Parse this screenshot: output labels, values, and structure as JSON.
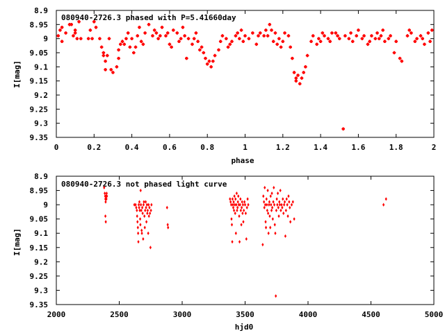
{
  "chart_data": [
    {
      "type": "scatter",
      "title": "080940-2726.3 phased with P=5.41660day",
      "xlabel": "phase",
      "ylabel": "I[mag]",
      "xlim": [
        0,
        2
      ],
      "ylim": [
        9.35,
        8.9
      ],
      "y_inverted": true,
      "grid": false,
      "x_ticks": [
        0,
        0.2,
        0.4,
        0.6,
        0.8,
        1,
        1.2,
        1.4,
        1.6,
        1.8,
        2
      ],
      "x_tick_labels": [
        "0",
        "0.2",
        "0.4",
        "0.6",
        "0.8",
        "1",
        "1.2",
        "1.4",
        "1.6",
        "1.8",
        "2"
      ],
      "y_ticks": [
        8.9,
        8.95,
        9,
        9.05,
        9.1,
        9.15,
        9.2,
        9.25,
        9.3,
        9.35
      ],
      "y_tick_labels": [
        "8.9",
        "8.95",
        "9",
        "9.05",
        "9.1",
        "9.15",
        "9.2",
        "9.25",
        "9.3",
        "9.35"
      ],
      "marker_color": "#ff0000",
      "marker": "plus",
      "points": [
        [
          0.01,
          8.99
        ],
        [
          0.02,
          8.97
        ],
        [
          0.03,
          8.96
        ],
        [
          0.03,
          9.01
        ],
        [
          0.05,
          8.98
        ],
        [
          0.07,
          8.95
        ],
        [
          0.08,
          8.95
        ],
        [
          0.09,
          8.99
        ],
        [
          0.1,
          8.98
        ],
        [
          0.1,
          8.97
        ],
        [
          0.11,
          9.0
        ],
        [
          0.12,
          8.94
        ],
        [
          0.13,
          9.0
        ],
        [
          0.17,
          9.0
        ],
        [
          0.18,
          8.97
        ],
        [
          0.19,
          9.0
        ],
        [
          0.2,
          8.94
        ],
        [
          0.21,
          8.96
        ],
        [
          0.23,
          9.0
        ],
        [
          0.24,
          9.03
        ],
        [
          0.25,
          9.05
        ],
        [
          0.25,
          9.06
        ],
        [
          0.26,
          9.08
        ],
        [
          0.26,
          9.11
        ],
        [
          0.27,
          9.06
        ],
        [
          0.28,
          9.0
        ],
        [
          0.29,
          9.11
        ],
        [
          0.3,
          9.12
        ],
        [
          0.32,
          9.1
        ],
        [
          0.33,
          9.07
        ],
        [
          0.33,
          9.04
        ],
        [
          0.34,
          9.02
        ],
        [
          0.35,
          9.01
        ],
        [
          0.36,
          9.02
        ],
        [
          0.37,
          9.0
        ],
        [
          0.38,
          8.98
        ],
        [
          0.39,
          9.03
        ],
        [
          0.4,
          9.0
        ],
        [
          0.41,
          9.05
        ],
        [
          0.42,
          9.03
        ],
        [
          0.43,
          8.99
        ],
        [
          0.44,
          8.96
        ],
        [
          0.45,
          9.01
        ],
        [
          0.46,
          9.02
        ],
        [
          0.47,
          8.98
        ],
        [
          0.49,
          8.95
        ],
        [
          0.51,
          8.99
        ],
        [
          0.52,
          8.97
        ],
        [
          0.53,
          8.98
        ],
        [
          0.54,
          9.0
        ],
        [
          0.55,
          8.99
        ],
        [
          0.56,
          8.96
        ],
        [
          0.58,
          8.99
        ],
        [
          0.59,
          8.98
        ],
        [
          0.6,
          9.02
        ],
        [
          0.61,
          9.03
        ],
        [
          0.62,
          8.97
        ],
        [
          0.64,
          8.98
        ],
        [
          0.65,
          9.01
        ],
        [
          0.66,
          9.0
        ],
        [
          0.67,
          8.96
        ],
        [
          0.68,
          8.99
        ],
        [
          0.69,
          9.07
        ],
        [
          0.7,
          9.0
        ],
        [
          0.72,
          9.02
        ],
        [
          0.73,
          9.0
        ],
        [
          0.74,
          8.98
        ],
        [
          0.75,
          9.01
        ],
        [
          0.76,
          9.04
        ],
        [
          0.77,
          9.03
        ],
        [
          0.78,
          9.05
        ],
        [
          0.79,
          9.07
        ],
        [
          0.8,
          9.09
        ],
        [
          0.81,
          9.08
        ],
        [
          0.82,
          9.1
        ],
        [
          0.83,
          9.08
        ],
        [
          0.84,
          9.06
        ],
        [
          0.86,
          9.04
        ],
        [
          0.87,
          9.01
        ],
        [
          0.88,
          8.99
        ],
        [
          0.9,
          9.0
        ],
        [
          0.91,
          9.03
        ],
        [
          0.92,
          9.02
        ],
        [
          0.93,
          9.01
        ],
        [
          0.95,
          8.99
        ],
        [
          0.96,
          8.98
        ],
        [
          0.97,
          9.0
        ],
        [
          0.98,
          8.97
        ],
        [
          0.99,
          9.01
        ],
        [
          1.0,
          8.99
        ],
        [
          1.02,
          9.0
        ],
        [
          1.04,
          8.98
        ],
        [
          1.06,
          9.02
        ],
        [
          1.07,
          8.99
        ],
        [
          1.08,
          8.98
        ],
        [
          1.1,
          8.99
        ],
        [
          1.11,
          8.97
        ],
        [
          1.12,
          8.99
        ],
        [
          1.13,
          8.95
        ],
        [
          1.14,
          8.97
        ],
        [
          1.15,
          9.01
        ],
        [
          1.16,
          8.98
        ],
        [
          1.17,
          9.02
        ],
        [
          1.18,
          9.0
        ],
        [
          1.19,
          9.03
        ],
        [
          1.2,
          9.01
        ],
        [
          1.21,
          8.98
        ],
        [
          1.23,
          8.99
        ],
        [
          1.24,
          9.03
        ],
        [
          1.25,
          9.07
        ],
        [
          1.26,
          9.12
        ],
        [
          1.27,
          9.14
        ],
        [
          1.27,
          9.15
        ],
        [
          1.28,
          9.13
        ],
        [
          1.29,
          9.16
        ],
        [
          1.3,
          9.14
        ],
        [
          1.31,
          9.12
        ],
        [
          1.32,
          9.1
        ],
        [
          1.33,
          9.06
        ],
        [
          1.35,
          9.01
        ],
        [
          1.36,
          8.99
        ],
        [
          1.38,
          9.02
        ],
        [
          1.39,
          9.0
        ],
        [
          1.4,
          9.01
        ],
        [
          1.41,
          8.98
        ],
        [
          1.42,
          8.99
        ],
        [
          1.44,
          9.0
        ],
        [
          1.45,
          9.01
        ],
        [
          1.46,
          8.98
        ],
        [
          1.48,
          8.98
        ],
        [
          1.49,
          8.99
        ],
        [
          1.5,
          9.0
        ],
        [
          1.52,
          9.32
        ],
        [
          1.53,
          8.99
        ],
        [
          1.55,
          9.0
        ],
        [
          1.56,
          8.98
        ],
        [
          1.57,
          9.01
        ],
        [
          1.59,
          8.99
        ],
        [
          1.6,
          8.97
        ],
        [
          1.62,
          9.0
        ],
        [
          1.63,
          8.99
        ],
        [
          1.65,
          9.02
        ],
        [
          1.66,
          9.01
        ],
        [
          1.67,
          8.99
        ],
        [
          1.69,
          9.0
        ],
        [
          1.7,
          8.98
        ],
        [
          1.71,
          9.0
        ],
        [
          1.72,
          8.99
        ],
        [
          1.73,
          8.97
        ],
        [
          1.74,
          9.01
        ],
        [
          1.76,
          9.0
        ],
        [
          1.77,
          8.99
        ],
        [
          1.79,
          9.05
        ],
        [
          1.8,
          9.01
        ],
        [
          1.82,
          9.07
        ],
        [
          1.83,
          9.08
        ],
        [
          1.86,
          8.99
        ],
        [
          1.87,
          8.97
        ],
        [
          1.88,
          8.98
        ],
        [
          1.9,
          9.01
        ],
        [
          1.91,
          9.0
        ],
        [
          1.93,
          8.99
        ],
        [
          1.94,
          9.0
        ],
        [
          1.95,
          9.02
        ],
        [
          1.97,
          8.98
        ],
        [
          1.98,
          9.01
        ],
        [
          1.99,
          8.97
        ]
      ]
    },
    {
      "type": "scatter",
      "title": "080940-2726.3 not phased light curve",
      "xlabel": "hjd0",
      "ylabel": "I[mag]",
      "xlim": [
        2000,
        5000
      ],
      "ylim": [
        9.35,
        8.9
      ],
      "y_inverted": true,
      "grid": false,
      "x_ticks": [
        2000,
        2500,
        3000,
        3500,
        4000,
        4500,
        5000
      ],
      "x_tick_labels": [
        "2000",
        "2500",
        "3000",
        "3500",
        "4000",
        "4500",
        "5000"
      ],
      "y_ticks": [
        8.9,
        8.95,
        9,
        9.05,
        9.1,
        9.15,
        9.2,
        9.25,
        9.3,
        9.35
      ],
      "y_tick_labels": [
        "8.9",
        "8.95",
        "9",
        "9.05",
        "9.1",
        "9.15",
        "9.2",
        "9.25",
        "9.3",
        "9.35"
      ],
      "marker_color": "#ff0000",
      "marker": "diamond",
      "points": [
        [
          2380,
          8.94
        ],
        [
          2385,
          8.96
        ],
        [
          2388,
          8.97
        ],
        [
          2390,
          8.98
        ],
        [
          2392,
          8.99
        ],
        [
          2395,
          8.97
        ],
        [
          2398,
          8.98
        ],
        [
          2400,
          8.96
        ],
        [
          2402,
          8.97
        ],
        [
          2390,
          9.04
        ],
        [
          2393,
          9.06
        ],
        [
          2620,
          9.0
        ],
        [
          2630,
          9.0
        ],
        [
          2635,
          9.01
        ],
        [
          2640,
          9.02
        ],
        [
          2642,
          9.04
        ],
        [
          2645,
          9.06
        ],
        [
          2648,
          9.08
        ],
        [
          2650,
          9.1
        ],
        [
          2652,
          9.13
        ],
        [
          2655,
          9.0
        ],
        [
          2658,
          9.01
        ],
        [
          2660,
          8.99
        ],
        [
          2663,
          9.02
        ],
        [
          2666,
          9.05
        ],
        [
          2668,
          9.07
        ],
        [
          2670,
          8.95
        ],
        [
          2672,
          9.0
        ],
        [
          2675,
          9.02
        ],
        [
          2678,
          9.09
        ],
        [
          2680,
          9.1
        ],
        [
          2683,
          9.01
        ],
        [
          2686,
          9.03
        ],
        [
          2690,
          9.12
        ],
        [
          2693,
          9.0
        ],
        [
          2696,
          8.99
        ],
        [
          2700,
          9.04
        ],
        [
          2703,
          9.08
        ],
        [
          2706,
          9.02
        ],
        [
          2710,
          8.99
        ],
        [
          2713,
          9.01
        ],
        [
          2716,
          9.06
        ],
        [
          2720,
          9.0
        ],
        [
          2723,
          9.03
        ],
        [
          2726,
          9.02
        ],
        [
          2730,
          9.1
        ],
        [
          2733,
          9.0
        ],
        [
          2736,
          9.04
        ],
        [
          2740,
          9.01
        ],
        [
          2744,
          9.03
        ],
        [
          2748,
          9.15
        ],
        [
          2752,
          9.02
        ],
        [
          2756,
          9.0
        ],
        [
          2880,
          9.01
        ],
        [
          2885,
          9.07
        ],
        [
          2888,
          9.08
        ],
        [
          3380,
          8.98
        ],
        [
          3385,
          8.99
        ],
        [
          3390,
          9.0
        ],
        [
          3392,
          9.05
        ],
        [
          3395,
          9.07
        ],
        [
          3398,
          9.13
        ],
        [
          3400,
          8.98
        ],
        [
          3403,
          9.0
        ],
        [
          3406,
          9.01
        ],
        [
          3409,
          8.99
        ],
        [
          3412,
          9.02
        ],
        [
          3415,
          8.97
        ],
        [
          3418,
          9.0
        ],
        [
          3421,
          9.03
        ],
        [
          3424,
          8.98
        ],
        [
          3427,
          9.1
        ],
        [
          3430,
          9.0
        ],
        [
          3433,
          8.96
        ],
        [
          3436,
          9.02
        ],
        [
          3440,
          9.01
        ],
        [
          3443,
          8.99
        ],
        [
          3446,
          8.97
        ],
        [
          3450,
          9.0
        ],
        [
          3453,
          9.04
        ],
        [
          3456,
          9.13
        ],
        [
          3460,
          9.0
        ],
        [
          3463,
          8.98
        ],
        [
          3466,
          9.02
        ],
        [
          3470,
          9.07
        ],
        [
          3473,
          9.01
        ],
        [
          3476,
          8.99
        ],
        [
          3480,
          9.03
        ],
        [
          3483,
          9.0
        ],
        [
          3486,
          9.06
        ],
        [
          3490,
          9.02
        ],
        [
          3495,
          8.99
        ],
        [
          3500,
          9.0
        ],
        [
          3505,
          9.03
        ],
        [
          3510,
          9.12
        ],
        [
          3515,
          9.01
        ],
        [
          3520,
          8.98
        ],
        [
          3525,
          9.0
        ],
        [
          3640,
          9.14
        ],
        [
          3645,
          8.97
        ],
        [
          3650,
          8.99
        ],
        [
          3653,
          9.01
        ],
        [
          3656,
          8.94
        ],
        [
          3660,
          9.0
        ],
        [
          3663,
          9.06
        ],
        [
          3666,
          9.08
        ],
        [
          3670,
          8.98
        ],
        [
          3673,
          9.0
        ],
        [
          3676,
          9.02
        ],
        [
          3680,
          8.95
        ],
        [
          3683,
          9.03
        ],
        [
          3686,
          9.1
        ],
        [
          3690,
          9.0
        ],
        [
          3693,
          8.99
        ],
        [
          3696,
          9.04
        ],
        [
          3700,
          9.08
        ],
        [
          3703,
          8.97
        ],
        [
          3706,
          9.0
        ],
        [
          3710,
          9.02
        ],
        [
          3713,
          8.96
        ],
        [
          3716,
          9.01
        ],
        [
          3720,
          9.05
        ],
        [
          3724,
          8.99
        ],
        [
          3728,
          8.94
        ],
        [
          3732,
          9.0
        ],
        [
          3736,
          9.07
        ],
        [
          3740,
          9.1
        ],
        [
          3744,
          9.32
        ],
        [
          3748,
          9.02
        ],
        [
          3752,
          8.98
        ],
        [
          3756,
          9.0
        ],
        [
          3760,
          8.96
        ],
        [
          3764,
          9.01
        ],
        [
          3768,
          9.04
        ],
        [
          3772,
          8.99
        ],
        [
          3776,
          9.0
        ],
        [
          3780,
          8.95
        ],
        [
          3784,
          9.02
        ],
        [
          3790,
          9.0
        ],
        [
          3795,
          9.01
        ],
        [
          3800,
          8.98
        ],
        [
          3805,
          9.03
        ],
        [
          3810,
          9.0
        ],
        [
          3815,
          8.99
        ],
        [
          3820,
          9.11
        ],
        [
          3825,
          9.02
        ],
        [
          3830,
          8.98
        ],
        [
          3835,
          9.0
        ],
        [
          3840,
          9.04
        ],
        [
          3845,
          8.97
        ],
        [
          3850,
          8.99
        ],
        [
          3855,
          9.01
        ],
        [
          3860,
          9.06
        ],
        [
          3870,
          9.0
        ],
        [
          3880,
          8.99
        ],
        [
          3890,
          9.05
        ],
        [
          4600,
          9.0
        ],
        [
          4620,
          8.98
        ]
      ]
    }
  ]
}
